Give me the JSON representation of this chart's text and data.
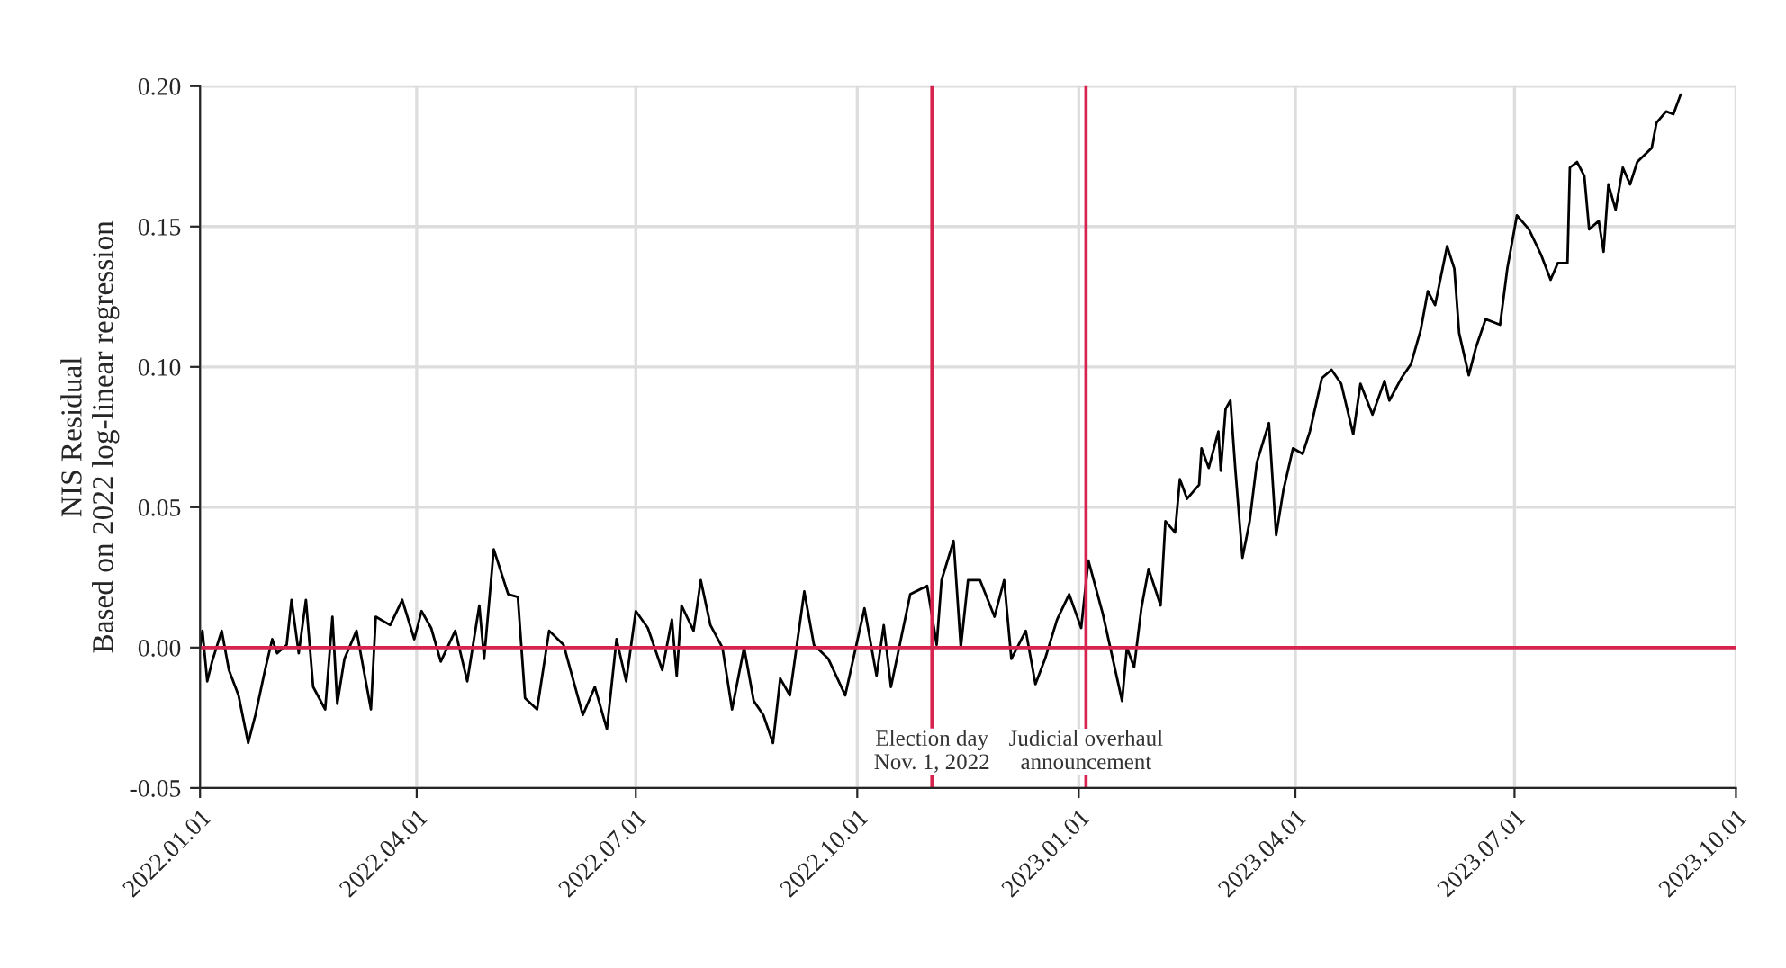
{
  "chart_data": {
    "type": "line",
    "ylabel": "NIS Residual\nBased on 2022 log-linear regression",
    "xlim": [
      "2022-01-01",
      "2023-10-01"
    ],
    "xticks": [
      {
        "value": "2022-01-01",
        "label": "2022.01.01"
      },
      {
        "value": "2022-04-01",
        "label": "2022.04.01"
      },
      {
        "value": "2022-07-01",
        "label": "2022.07.01"
      },
      {
        "value": "2022-10-01",
        "label": "2022.10.01"
      },
      {
        "value": "2023-01-01",
        "label": "2023.01.01"
      },
      {
        "value": "2023-04-01",
        "label": "2023.04.01"
      },
      {
        "value": "2023-07-01",
        "label": "2023.07.01"
      },
      {
        "value": "2023-10-01",
        "label": "2023.10.01"
      }
    ],
    "ylim": [
      -0.05,
      0.2
    ],
    "yticks": [
      {
        "value": -0.05,
        "label": "-0.05"
      },
      {
        "value": 0,
        "label": "0.00"
      },
      {
        "value": 0.05,
        "label": "0.05"
      },
      {
        "value": 0.1,
        "label": "0.10"
      },
      {
        "value": 0.15,
        "label": "0.15"
      },
      {
        "value": 0.2,
        "label": "0.20"
      }
    ],
    "grid": true,
    "marker": "none",
    "line_style": "solid",
    "x": [
      "2022-01-01",
      "2022-01-02",
      "2022-01-04",
      "2022-01-06",
      "2022-01-10",
      "2022-01-13",
      "2022-01-17",
      "2022-01-21",
      "2022-01-24",
      "2022-01-28",
      "2022-01-31",
      "2022-02-02",
      "2022-02-06",
      "2022-02-08",
      "2022-02-11",
      "2022-02-14",
      "2022-02-17",
      "2022-02-22",
      "2022-02-25",
      "2022-02-27",
      "2022-03-02",
      "2022-03-07",
      "2022-03-13",
      "2022-03-15",
      "2022-03-21",
      "2022-03-26",
      "2022-03-31",
      "2022-04-03",
      "2022-04-07",
      "2022-04-11",
      "2022-04-17",
      "2022-04-22",
      "2022-04-27",
      "2022-04-29",
      "2022-05-03",
      "2022-05-09",
      "2022-05-13",
      "2022-05-16",
      "2022-05-21",
      "2022-05-26",
      "2022-06-01",
      "2022-06-09",
      "2022-06-14",
      "2022-06-19",
      "2022-06-23",
      "2022-06-27",
      "2022-07-01",
      "2022-07-06",
      "2022-07-12",
      "2022-07-16",
      "2022-07-18",
      "2022-07-20",
      "2022-07-25",
      "2022-07-28",
      "2022-08-01",
      "2022-08-06",
      "2022-08-10",
      "2022-08-15",
      "2022-08-19",
      "2022-08-23",
      "2022-08-27",
      "2022-08-30",
      "2022-09-03",
      "2022-09-09",
      "2022-09-13",
      "2022-09-19",
      "2022-09-26",
      "2022-10-04",
      "2022-10-09",
      "2022-10-12",
      "2022-10-15",
      "2022-10-23",
      "2022-10-30",
      "2022-11-03",
      "2022-11-05",
      "2022-11-10",
      "2022-11-13",
      "2022-11-16",
      "2022-11-21",
      "2022-11-27",
      "2022-12-01",
      "2022-12-04",
      "2022-12-10",
      "2022-12-14",
      "2022-12-18",
      "2022-12-23",
      "2022-12-28",
      "2023-01-02",
      "2023-01-05",
      "2023-01-11",
      "2023-01-19",
      "2023-01-21",
      "2023-01-24",
      "2023-01-27",
      "2023-01-30",
      "2023-02-04",
      "2023-02-06",
      "2023-02-10",
      "2023-02-12",
      "2023-02-15",
      "2023-02-20",
      "2023-02-21",
      "2023-02-24",
      "2023-02-28",
      "2023-03-01",
      "2023-03-03",
      "2023-03-05",
      "2023-03-07",
      "2023-03-10",
      "2023-03-13",
      "2023-03-16",
      "2023-03-21",
      "2023-03-24",
      "2023-03-27",
      "2023-03-31",
      "2023-04-04",
      "2023-04-07",
      "2023-04-12",
      "2023-04-16",
      "2023-04-20",
      "2023-04-25",
      "2023-04-28",
      "2023-05-03",
      "2023-05-08",
      "2023-05-10",
      "2023-05-15",
      "2023-05-19",
      "2023-05-23",
      "2023-05-26",
      "2023-05-29",
      "2023-06-03",
      "2023-06-06",
      "2023-06-08",
      "2023-06-12",
      "2023-06-15",
      "2023-06-19",
      "2023-06-25",
      "2023-06-28",
      "2023-07-02",
      "2023-07-07",
      "2023-07-12",
      "2023-07-16",
      "2023-07-19",
      "2023-07-23",
      "2023-07-24",
      "2023-07-27",
      "2023-07-30",
      "2023-08-01",
      "2023-08-05",
      "2023-08-07",
      "2023-08-09",
      "2023-08-12",
      "2023-08-15",
      "2023-08-18",
      "2023-08-21",
      "2023-08-27",
      "2023-08-29",
      "2023-09-02",
      "2023-09-05",
      "2023-09-08"
    ],
    "series": [
      {
        "color": "#000000",
        "values": [
          0,
          0.006,
          -0.012,
          -0.005,
          0.006,
          -0.008,
          -0.017,
          -0.034,
          -0.024,
          -0.008,
          0.003,
          -0.002,
          0.001,
          0.017,
          -0.002,
          0.017,
          -0.014,
          -0.022,
          0.011,
          -0.02,
          -0.004,
          0.006,
          -0.022,
          0.011,
          0.008,
          0.017,
          0.003,
          0.013,
          0.007,
          -0.005,
          0.006,
          -0.012,
          0.015,
          -0.004,
          0.035,
          0.019,
          0.018,
          -0.018,
          -0.022,
          0.006,
          0.001,
          -0.024,
          -0.014,
          -0.029,
          0.003,
          -0.012,
          0.013,
          0.007,
          -0.008,
          0.01,
          -0.01,
          0.015,
          0.006,
          0.024,
          0.008,
          0.0,
          -0.022,
          0,
          -0.019,
          -0.024,
          -0.034,
          -0.011,
          -0.017,
          0.02,
          0.001,
          -0.004,
          -0.017,
          0.014,
          -0.01,
          0.008,
          -0.014,
          0.019,
          0.022,
          0.001,
          0.024,
          0.038,
          0,
          0.024,
          0.024,
          0.011,
          0.024,
          -0.004,
          0.006,
          -0.013,
          -0.004,
          0.01,
          0.019,
          0.007,
          0.031,
          0.012,
          -0.019,
          0,
          -0.007,
          0.014,
          0.028,
          0.015,
          0.045,
          0.041,
          0.06,
          0.053,
          0.058,
          0.071,
          0.064,
          0.077,
          0.063,
          0.085,
          0.088,
          0.064,
          0.032,
          0.045,
          0.066,
          0.08,
          0.04,
          0.056,
          0.071,
          0.069,
          0.077,
          0.096,
          0.099,
          0.094,
          0.076,
          0.094,
          0.083,
          0.095,
          0.088,
          0.096,
          0.101,
          0.113,
          0.127,
          0.122,
          0.143,
          0.135,
          0.112,
          0.097,
          0.107,
          0.117,
          0.115,
          0.135,
          0.154,
          0.149,
          0.14,
          0.131,
          0.137,
          0.137,
          0.171,
          0.173,
          0.168,
          0.149,
          0.152,
          0.141,
          0.165,
          0.156,
          0.171,
          0.165,
          0.173,
          0.178,
          0.187,
          0.191,
          0.19,
          0.197
        ]
      }
    ],
    "ref_lines": [
      {
        "axis": "y",
        "value": 0,
        "color": "#d6244f"
      },
      {
        "axis": "x",
        "value": "2022-11-01",
        "label": "Election day\nNov. 1, 2022",
        "color": "#d6244f"
      },
      {
        "axis": "x",
        "value": "2023-01-04",
        "label": "Judicial overhaul\nannouncement",
        "color": "#d6244f"
      }
    ]
  }
}
